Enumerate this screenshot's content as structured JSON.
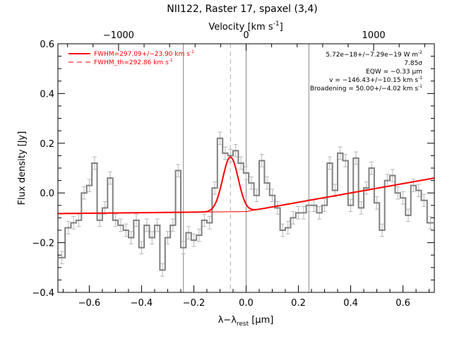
{
  "chart_data": {
    "type": "line",
    "title": "NII122, Raster 17, spaxel (3,4)",
    "xlabel": "λ−λ",
    "xlabel_sub": "rest",
    "xlabel_unit": " [μm]",
    "ylabel": "Flux density [Jy]",
    "top_axis_label": "Velocity [km s",
    "top_axis_label_sup": "-1",
    "top_axis_label_end": "]",
    "xlim": [
      -0.72,
      0.72
    ],
    "ylim": [
      -0.4,
      0.6
    ],
    "x_ticks": [
      -0.6,
      -0.4,
      -0.2,
      0.0,
      0.2,
      0.4,
      0.6
    ],
    "x_tick_labels": [
      "−0.6",
      "−0.4",
      "−0.2",
      "0.0",
      "0.2",
      "0.4",
      "0.6"
    ],
    "y_ticks": [
      -0.4,
      -0.2,
      0.0,
      0.2,
      0.4,
      0.6
    ],
    "y_tick_labels": [
      "−0.4",
      "−0.2",
      "0.0",
      "0.2",
      "0.4",
      "0.6"
    ],
    "top_ticks_x": [
      -0.4879,
      0.0,
      0.4879
    ],
    "top_tick_labels": [
      "−1000",
      "0",
      "1000"
    ],
    "vertical_lines": [
      {
        "x": -0.24,
        "style": "solid",
        "color": "#888888"
      },
      {
        "x": 0.0,
        "style": "solid",
        "color": "#888888"
      },
      {
        "x": 0.24,
        "style": "solid",
        "color": "#888888"
      },
      {
        "x": -0.06,
        "style": "dashed",
        "color": "#aaaaaa"
      }
    ],
    "legend": {
      "position": "top-left",
      "entries": [
        {
          "label": "FWHM=297.09+/−23.90 km s",
          "sup": "-1",
          "style": "solid",
          "color": "#ff0000"
        },
        {
          "label": "FWHM_th=292.86 km s",
          "sup": "-1",
          "style": "dashed",
          "color": "#ff0000"
        }
      ]
    },
    "annotations": {
      "position": "top-right",
      "lines": [
        {
          "text": "5.72e−18+/−7.29e−19 W m",
          "sup": "-2"
        },
        {
          "text": "7.85σ",
          "sup": ""
        },
        {
          "text": "EQW = −0.33 μm",
          "sup": ""
        },
        {
          "text": "v = −146.43+/−10.15 km s",
          "sup": "-1"
        },
        {
          "text": "Broadening = 50.00+/−4.02 km s",
          "sup": "-1"
        }
      ]
    },
    "data_series": {
      "name": "",
      "color": "#808080",
      "error": 0.025,
      "x": [
        -0.705,
        -0.68,
        -0.66,
        -0.64,
        -0.62,
        -0.6,
        -0.58,
        -0.56,
        -0.54,
        -0.52,
        -0.5,
        -0.48,
        -0.46,
        -0.44,
        -0.42,
        -0.4,
        -0.38,
        -0.36,
        -0.34,
        -0.32,
        -0.3,
        -0.28,
        -0.26,
        -0.24,
        -0.22,
        -0.2,
        -0.18,
        -0.16,
        -0.14,
        -0.12,
        -0.1,
        -0.08,
        -0.06,
        -0.04,
        -0.02,
        0.0,
        0.02,
        0.04,
        0.06,
        0.08,
        0.1,
        0.12,
        0.14,
        0.16,
        0.18,
        0.2,
        0.22,
        0.24,
        0.26,
        0.28,
        0.3,
        0.32,
        0.34,
        0.36,
        0.38,
        0.4,
        0.42,
        0.44,
        0.46,
        0.48,
        0.5,
        0.52,
        0.54,
        0.56,
        0.58,
        0.6,
        0.62,
        0.64,
        0.66,
        0.68,
        0.705
      ],
      "y": [
        -0.26,
        -0.14,
        -0.12,
        -0.11,
        0.0,
        0.03,
        0.12,
        -0.11,
        -0.06,
        0.06,
        -0.11,
        -0.13,
        -0.15,
        -0.18,
        -0.11,
        -0.22,
        -0.13,
        -0.18,
        -0.13,
        -0.31,
        -0.18,
        -0.13,
        0.09,
        -0.22,
        -0.16,
        -0.19,
        -0.17,
        -0.11,
        -0.12,
        0.02,
        0.22,
        0.16,
        0.15,
        0.17,
        0.12,
        0.08,
        0.04,
        -0.01,
        0.13,
        0.04,
        -0.01,
        -0.06,
        -0.15,
        -0.14,
        -0.1,
        -0.08,
        -0.08,
        -0.05,
        -0.05,
        -0.08,
        -0.05,
        0.12,
        0.01,
        0.16,
        0.13,
        -0.05,
        0.14,
        -0.06,
        0.02,
        0.1,
        -0.04,
        -0.15,
        0.05,
        0.07,
        0.0,
        -0.02,
        -0.09,
        0.03,
        0.01,
        -0.03,
        -0.12
      ]
    },
    "fit_curve": {
      "color": "#ff0000",
      "baseline_at_xmin": -0.083,
      "baseline_at_x0": -0.075,
      "baseline_at_xmax": 0.06,
      "gauss_center": -0.06,
      "gauss_amplitude": 0.22,
      "gauss_fwhm": 0.07
    }
  }
}
